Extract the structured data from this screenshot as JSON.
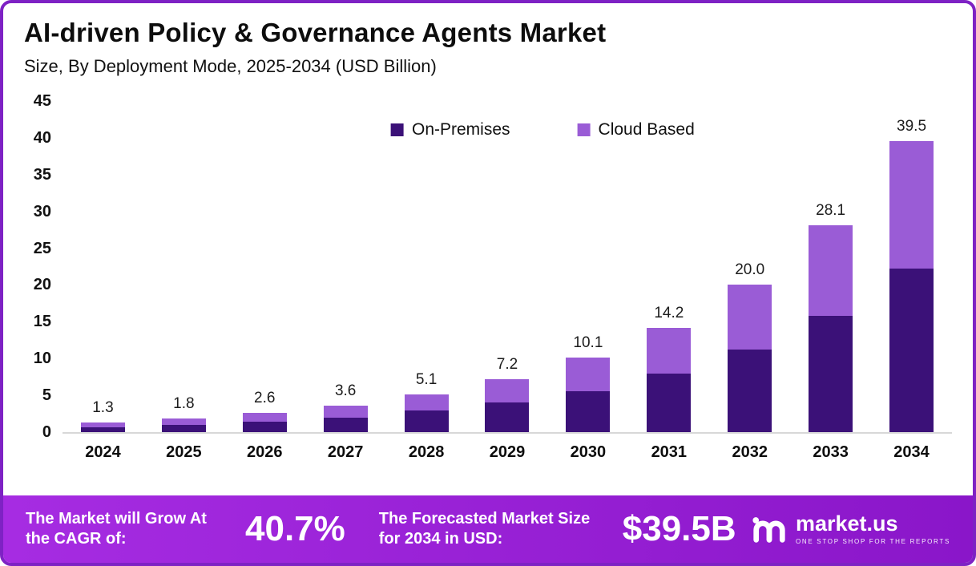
{
  "header": {
    "title": "AI-driven Policy & Governance Agents Market",
    "subtitle": "Size, By Deployment Mode, 2025-2034 (USD Billion)"
  },
  "chart_data": {
    "type": "bar",
    "stacked": true,
    "title": "AI-driven Policy & Governance Agents Market",
    "subtitle": "Size, By Deployment Mode, 2025-2034 (USD Billion)",
    "categories": [
      "2024",
      "2025",
      "2026",
      "2027",
      "2028",
      "2029",
      "2030",
      "2031",
      "2032",
      "2033",
      "2034"
    ],
    "series": [
      {
        "name": "On-Premises",
        "color": "#3b1178",
        "values": [
          0.7,
          1.0,
          1.4,
          2.0,
          2.9,
          4.0,
          5.6,
          8.0,
          11.2,
          15.8,
          22.2
        ]
      },
      {
        "name": "Cloud Based",
        "color": "#9a5cd6",
        "values": [
          0.6,
          0.8,
          1.2,
          1.6,
          2.2,
          3.2,
          4.5,
          6.2,
          8.8,
          12.3,
          17.3
        ]
      }
    ],
    "totals": [
      1.3,
      1.8,
      2.6,
      3.6,
      5.1,
      7.2,
      10.1,
      14.2,
      20.0,
      28.1,
      39.5
    ],
    "total_labels": [
      "1.3",
      "1.8",
      "2.6",
      "3.6",
      "5.1",
      "7.2",
      "10.1",
      "14.2",
      "20.0",
      "28.1",
      "39.5"
    ],
    "y_ticks": [
      45,
      40,
      35,
      30,
      25,
      20,
      15,
      10,
      5,
      0
    ],
    "ylim": [
      0,
      45
    ],
    "xlabel": "",
    "ylabel": "",
    "grid": false,
    "legend_position": "top-center"
  },
  "footer": {
    "cagr_label": "The Market will Grow At the CAGR of:",
    "cagr_value": "40.7%",
    "forecast_label": "The Forecasted Market Size for 2034 in USD:",
    "forecast_value": "$39.5B",
    "brand": "market.us",
    "tagline": "ONE STOP SHOP FOR THE REPORTS"
  },
  "colors": {
    "frame_border": "#7e22c4",
    "on_premises": "#3b1178",
    "cloud_based": "#9a5cd6",
    "footer_gradient_start": "#a62ce2",
    "footer_gradient_end": "#8a16c9",
    "axis_baseline": "#d8d8d8"
  }
}
